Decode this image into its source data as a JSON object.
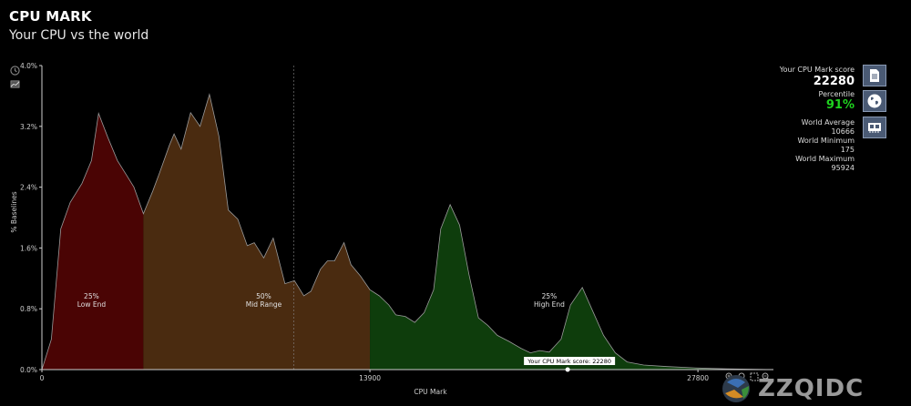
{
  "header": {
    "title": "CPU MARK",
    "subtitle": "Your CPU vs the world"
  },
  "stats": {
    "score_label": "Your CPU Mark score",
    "score_value": "22280",
    "percentile_label": "Percentile",
    "percentile_value": "91%",
    "world_average_label": "World Average",
    "world_average_value": "10666",
    "world_minimum_label": "World Minimum",
    "world_minimum_value": "175",
    "world_maximum_label": "World Maximum",
    "world_maximum_value": "95924"
  },
  "side_buttons": [
    "document-icon",
    "globe-icon",
    "cpu-chip-icon"
  ],
  "toolbar_icons": [
    "zoom-in-icon",
    "zoom-reset-icon",
    "fit-icon",
    "zoom-out-icon"
  ],
  "watermark": {
    "text": "ZZQIDC"
  },
  "colors": {
    "low_end": "#4a0404",
    "mid_range": "#4a2b10",
    "high_end": "#0e3d0c",
    "percentile": "#1fd31f",
    "button": "#4a5a74"
  },
  "chart_data": {
    "type": "area",
    "xlabel": "CPU Mark",
    "ylabel": "% Baselines",
    "xlim": [
      0,
      31000
    ],
    "ylim": [
      0,
      4.0
    ],
    "x_ticks": [
      0,
      13900,
      27800
    ],
    "x_tick_labels": [
      "0",
      "13900",
      "27800"
    ],
    "y_ticks": [
      0,
      0.8,
      1.6,
      2.4,
      3.2,
      4.0
    ],
    "y_tick_labels": [
      "0.0%",
      "0.8%",
      "1.6%",
      "2.4%",
      "3.2%",
      "4.0%"
    ],
    "points": [
      [
        0,
        0.0
      ],
      [
        400,
        0.4
      ],
      [
        800,
        1.85
      ],
      [
        1200,
        2.2
      ],
      [
        1700,
        2.45
      ],
      [
        2100,
        2.75
      ],
      [
        2400,
        3.37
      ],
      [
        2800,
        3.05
      ],
      [
        3200,
        2.75
      ],
      [
        3600,
        2.55
      ],
      [
        3900,
        2.4
      ],
      [
        4300,
        2.05
      ],
      [
        4700,
        2.35
      ],
      [
        5000,
        2.6
      ],
      [
        5400,
        2.95
      ],
      [
        5600,
        3.1
      ],
      [
        5900,
        2.9
      ],
      [
        6300,
        3.38
      ],
      [
        6700,
        3.2
      ],
      [
        7100,
        3.62
      ],
      [
        7500,
        3.07
      ],
      [
        7900,
        2.1
      ],
      [
        8300,
        1.98
      ],
      [
        8700,
        1.63
      ],
      [
        9000,
        1.67
      ],
      [
        9400,
        1.47
      ],
      [
        9800,
        1.73
      ],
      [
        10300,
        1.13
      ],
      [
        10700,
        1.17
      ],
      [
        11100,
        0.97
      ],
      [
        11400,
        1.03
      ],
      [
        11800,
        1.32
      ],
      [
        12100,
        1.43
      ],
      [
        12400,
        1.43
      ],
      [
        12800,
        1.67
      ],
      [
        13100,
        1.38
      ],
      [
        13500,
        1.23
      ],
      [
        13900,
        1.05
      ],
      [
        14300,
        0.97
      ],
      [
        14700,
        0.85
      ],
      [
        15000,
        0.72
      ],
      [
        15400,
        0.7
      ],
      [
        15800,
        0.62
      ],
      [
        16200,
        0.75
      ],
      [
        16600,
        1.05
      ],
      [
        16900,
        1.85
      ],
      [
        17300,
        2.17
      ],
      [
        17700,
        1.9
      ],
      [
        18100,
        1.25
      ],
      [
        18500,
        0.68
      ],
      [
        18900,
        0.58
      ],
      [
        19300,
        0.45
      ],
      [
        19800,
        0.37
      ],
      [
        20300,
        0.28
      ],
      [
        20700,
        0.22
      ],
      [
        21100,
        0.25
      ],
      [
        21500,
        0.23
      ],
      [
        22000,
        0.4
      ],
      [
        22400,
        0.85
      ],
      [
        22900,
        1.08
      ],
      [
        23300,
        0.8
      ],
      [
        23800,
        0.45
      ],
      [
        24300,
        0.22
      ],
      [
        24800,
        0.1
      ],
      [
        25500,
        0.06
      ],
      [
        26500,
        0.04
      ],
      [
        27800,
        0.02
      ],
      [
        29000,
        0.01
      ],
      [
        31000,
        0.0
      ]
    ],
    "regions": [
      {
        "name": "Low End",
        "percent": "25%",
        "from": 0,
        "to": 4300,
        "color": "#4a0404"
      },
      {
        "name": "Mid Range",
        "percent": "50%",
        "from": 4300,
        "to": 13900,
        "color": "#4a2b10"
      },
      {
        "name": "High End",
        "percent": "25%",
        "from": 13900,
        "to": 31000,
        "color": "#0e3d0c"
      }
    ],
    "average_line_x": 10666,
    "marker": {
      "x": 22280,
      "label": "Your CPU Mark score: 22280"
    }
  }
}
